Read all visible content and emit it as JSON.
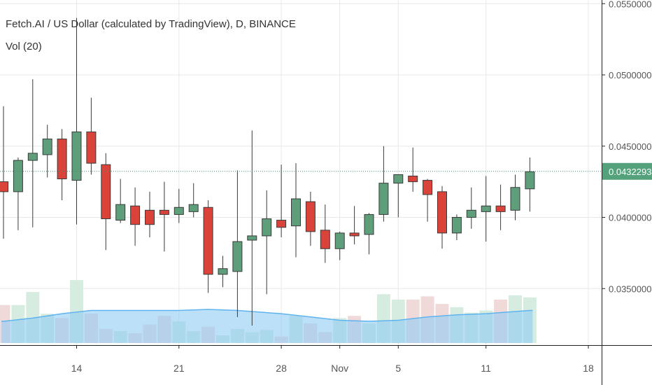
{
  "chart_data": {
    "type": "candlestick",
    "title": "Fetch.AI / US Dollar (calculated by TradingView), D, BINANCE",
    "volume_label": "Vol (20)",
    "x_ticks": [
      {
        "label": "14",
        "day": 14
      },
      {
        "label": "21",
        "day": 21
      },
      {
        "label": "28",
        "day": 28
      },
      {
        "label": "Nov",
        "day": 32
      },
      {
        "label": "5",
        "day": 36
      },
      {
        "label": "11",
        "day": 42
      },
      {
        "label": "18",
        "day": 49
      }
    ],
    "y_ticks": [
      "0.05500000",
      "0.05000000",
      "0.04500000",
      "0.04000000",
      "0.03500000"
    ],
    "y_tick_values": [
      0.055,
      0.05,
      0.045,
      0.04,
      0.035
    ],
    "ylim": [
      0.031,
      0.0555
    ],
    "last_price": {
      "label": "0.04322934",
      "value": 0.04322934
    },
    "candles": [
      {
        "day": 9,
        "open": 0.0425,
        "high": 0.0478,
        "low": 0.0385,
        "close": 0.0418
      },
      {
        "day": 10,
        "open": 0.0418,
        "high": 0.0442,
        "low": 0.0391,
        "close": 0.044
      },
      {
        "day": 11,
        "open": 0.044,
        "high": 0.0497,
        "low": 0.0393,
        "close": 0.0445
      },
      {
        "day": 12,
        "open": 0.0444,
        "high": 0.0465,
        "low": 0.0428,
        "close": 0.0455
      },
      {
        "day": 13,
        "open": 0.0455,
        "high": 0.0462,
        "low": 0.0412,
        "close": 0.0427
      },
      {
        "day": 14,
        "open": 0.0426,
        "high": 0.054,
        "low": 0.0395,
        "close": 0.046
      },
      {
        "day": 15,
        "open": 0.046,
        "high": 0.0484,
        "low": 0.043,
        "close": 0.0438
      },
      {
        "day": 16,
        "open": 0.0437,
        "high": 0.0445,
        "low": 0.0377,
        "close": 0.0399
      },
      {
        "day": 17,
        "open": 0.0398,
        "high": 0.0427,
        "low": 0.0396,
        "close": 0.0409
      },
      {
        "day": 18,
        "open": 0.0408,
        "high": 0.0421,
        "low": 0.038,
        "close": 0.0395
      },
      {
        "day": 19,
        "open": 0.0405,
        "high": 0.0418,
        "low": 0.0386,
        "close": 0.0395
      },
      {
        "day": 20,
        "open": 0.0405,
        "high": 0.0425,
        "low": 0.0376,
        "close": 0.0402
      },
      {
        "day": 21,
        "open": 0.0402,
        "high": 0.042,
        "low": 0.0396,
        "close": 0.0407
      },
      {
        "day": 22,
        "open": 0.0404,
        "high": 0.0424,
        "low": 0.04,
        "close": 0.0409
      },
      {
        "day": 23,
        "open": 0.0407,
        "high": 0.0412,
        "low": 0.0347,
        "close": 0.036
      },
      {
        "day": 24,
        "open": 0.036,
        "high": 0.0373,
        "low": 0.0351,
        "close": 0.0364
      },
      {
        "day": 25,
        "open": 0.0362,
        "high": 0.0433,
        "low": 0.033,
        "close": 0.0383
      },
      {
        "day": 26,
        "open": 0.0384,
        "high": 0.0461,
        "low": 0.0324,
        "close": 0.0387
      },
      {
        "day": 27,
        "open": 0.0387,
        "high": 0.0419,
        "low": 0.0346,
        "close": 0.0399
      },
      {
        "day": 28,
        "open": 0.0398,
        "high": 0.0437,
        "low": 0.0386,
        "close": 0.0393
      },
      {
        "day": 29,
        "open": 0.0394,
        "high": 0.0438,
        "low": 0.0372,
        "close": 0.0413
      },
      {
        "day": 30,
        "open": 0.0411,
        "high": 0.0418,
        "low": 0.038,
        "close": 0.039
      },
      {
        "day": 31,
        "open": 0.0391,
        "high": 0.0409,
        "low": 0.0368,
        "close": 0.0378
      },
      {
        "day": 32,
        "open": 0.0378,
        "high": 0.039,
        "low": 0.037,
        "close": 0.0389
      },
      {
        "day": 33,
        "open": 0.0389,
        "high": 0.0408,
        "low": 0.0381,
        "close": 0.0387
      },
      {
        "day": 34,
        "open": 0.0388,
        "high": 0.0403,
        "low": 0.0374,
        "close": 0.0402
      },
      {
        "day": 35,
        "open": 0.0402,
        "high": 0.045,
        "low": 0.0397,
        "close": 0.0424
      },
      {
        "day": 36,
        "open": 0.0424,
        "high": 0.043,
        "low": 0.04,
        "close": 0.043
      },
      {
        "day": 37,
        "open": 0.0429,
        "high": 0.0449,
        "low": 0.0418,
        "close": 0.0425
      },
      {
        "day": 38,
        "open": 0.0426,
        "high": 0.0427,
        "low": 0.0397,
        "close": 0.0416
      },
      {
        "day": 39,
        "open": 0.0418,
        "high": 0.0422,
        "low": 0.0378,
        "close": 0.0389
      },
      {
        "day": 40,
        "open": 0.0389,
        "high": 0.0402,
        "low": 0.0384,
        "close": 0.04
      },
      {
        "day": 41,
        "open": 0.04,
        "high": 0.0421,
        "low": 0.0392,
        "close": 0.0405
      },
      {
        "day": 42,
        "open": 0.0404,
        "high": 0.0429,
        "low": 0.0383,
        "close": 0.0408
      },
      {
        "day": 43,
        "open": 0.0408,
        "high": 0.0423,
        "low": 0.0391,
        "close": 0.0404
      },
      {
        "day": 44,
        "open": 0.0405,
        "high": 0.043,
        "low": 0.0398,
        "close": 0.0421
      },
      {
        "day": 45,
        "open": 0.042,
        "high": 0.0442,
        "low": 0.0404,
        "close": 0.0432
      }
    ],
    "volume_bars": [
      {
        "day": 9,
        "height": 0.35,
        "up": false
      },
      {
        "day": 10,
        "height": 0.35,
        "up": true
      },
      {
        "day": 11,
        "height": 0.47,
        "up": true
      },
      {
        "day": 12,
        "height": 0.27,
        "up": true
      },
      {
        "day": 13,
        "height": 0.23,
        "up": false
      },
      {
        "day": 14,
        "height": 0.58,
        "up": true
      },
      {
        "day": 15,
        "height": 0.27,
        "up": false
      },
      {
        "day": 16,
        "height": 0.13,
        "up": false
      },
      {
        "day": 17,
        "height": 0.11,
        "up": true
      },
      {
        "day": 18,
        "height": 0.09,
        "up": false
      },
      {
        "day": 19,
        "height": 0.17,
        "up": false
      },
      {
        "day": 20,
        "height": 0.25,
        "up": false
      },
      {
        "day": 21,
        "height": 0.2,
        "up": true
      },
      {
        "day": 22,
        "height": 0.11,
        "up": true
      },
      {
        "day": 23,
        "height": 0.15,
        "up": false
      },
      {
        "day": 24,
        "height": 0.07,
        "up": true
      },
      {
        "day": 25,
        "height": 0.13,
        "up": true
      },
      {
        "day": 26,
        "height": 0.1,
        "up": true
      },
      {
        "day": 27,
        "height": 0.12,
        "up": true
      },
      {
        "day": 28,
        "height": 0.06,
        "up": false
      },
      {
        "day": 29,
        "height": 0.25,
        "up": true
      },
      {
        "day": 30,
        "height": 0.18,
        "up": false
      },
      {
        "day": 31,
        "height": 0.1,
        "up": false
      },
      {
        "day": 32,
        "height": 0.23,
        "up": true
      },
      {
        "day": 33,
        "height": 0.25,
        "up": false
      },
      {
        "day": 34,
        "height": 0.18,
        "up": true
      },
      {
        "day": 35,
        "height": 0.45,
        "up": true
      },
      {
        "day": 36,
        "height": 0.4,
        "up": true
      },
      {
        "day": 37,
        "height": 0.4,
        "up": false
      },
      {
        "day": 38,
        "height": 0.43,
        "up": false
      },
      {
        "day": 39,
        "height": 0.36,
        "up": false
      },
      {
        "day": 40,
        "height": 0.33,
        "up": true
      },
      {
        "day": 41,
        "height": 0.28,
        "up": true
      },
      {
        "day": 42,
        "height": 0.3,
        "up": true
      },
      {
        "day": 43,
        "height": 0.4,
        "up": false
      },
      {
        "day": 44,
        "height": 0.44,
        "up": true
      },
      {
        "day": 45,
        "height": 0.42,
        "up": true
      }
    ],
    "volume_ma": [
      {
        "day": 9,
        "height": 0.2
      },
      {
        "day": 11,
        "height": 0.23
      },
      {
        "day": 13,
        "height": 0.27
      },
      {
        "day": 15,
        "height": 0.3
      },
      {
        "day": 17,
        "height": 0.3
      },
      {
        "day": 19,
        "height": 0.3
      },
      {
        "day": 21,
        "height": 0.3
      },
      {
        "day": 23,
        "height": 0.31
      },
      {
        "day": 25,
        "height": 0.3
      },
      {
        "day": 26,
        "height": 0.29
      },
      {
        "day": 28,
        "height": 0.27
      },
      {
        "day": 30,
        "height": 0.24
      },
      {
        "day": 32,
        "height": 0.21
      },
      {
        "day": 34,
        "height": 0.2
      },
      {
        "day": 36,
        "height": 0.21
      },
      {
        "day": 38,
        "height": 0.24
      },
      {
        "day": 40,
        "height": 0.26
      },
      {
        "day": 42,
        "height": 0.27
      },
      {
        "day": 44,
        "height": 0.29
      },
      {
        "day": 45,
        "height": 0.3
      }
    ],
    "colors": {
      "up_body": "#5f9e7b",
      "down_body": "#d9433a",
      "candle_border": "#3a3a3a",
      "grid": "#e8e8e8",
      "axis": "#222222",
      "tick_text": "#555555",
      "last_price_bg": "#53a27b",
      "last_price_line": "#4a8f6a",
      "vol_up": "#d7ece0",
      "vol_down": "#f0d9d9",
      "vol_ma_fill": "#8fcbf4",
      "vol_ma_line": "#5fb3ee"
    }
  }
}
